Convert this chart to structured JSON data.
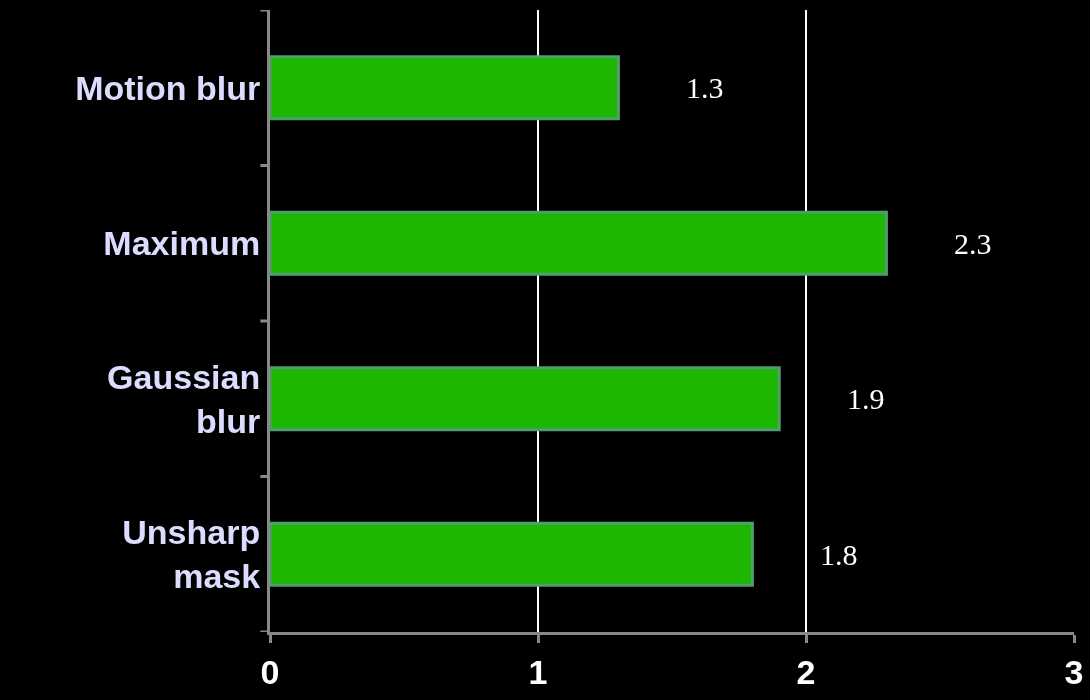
{
  "chart_data": {
    "type": "bar",
    "orientation": "horizontal",
    "categories": [
      "Motion blur",
      "Maximum",
      "Gaussian\nblur",
      "Unsharp\nmask"
    ],
    "values": [
      1.3,
      2.3,
      1.9,
      1.8
    ],
    "color": "#1db600",
    "xlim": [
      0,
      3
    ],
    "xticks": [
      0,
      1,
      2,
      3
    ],
    "grid": "x",
    "data_labels": true
  }
}
